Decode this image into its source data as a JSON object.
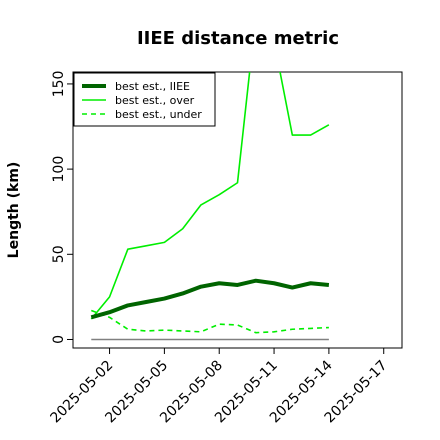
{
  "chart_data": {
    "type": "line",
    "title": "IIEE distance metric",
    "xlabel": "",
    "ylabel": "Length (km)",
    "x_tick_labels": [
      "2025-05-02",
      "2025-05-05",
      "2025-05-08",
      "2025-05-11",
      "2025-05-14",
      "2025-05-17"
    ],
    "y_ticks": [
      0,
      50,
      100,
      150
    ],
    "x": [
      "2025-05-01",
      "2025-05-02",
      "2025-05-03",
      "2025-05-04",
      "2025-05-05",
      "2025-05-06",
      "2025-05-07",
      "2025-05-08",
      "2025-05-09",
      "2025-05-10",
      "2025-05-11",
      "2025-05-12",
      "2025-05-13",
      "2025-05-14"
    ],
    "xlim": [
      "2025-04-30",
      "2025-05-18"
    ],
    "ylim": [
      -5,
      157
    ],
    "zero_line": true,
    "grid": false,
    "legend_position": "top-left",
    "series": [
      {
        "name": "best est., IIEE",
        "color": "#006400",
        "style": "solid",
        "weight": "thick",
        "values": [
          13,
          16,
          20,
          22,
          24,
          27,
          31,
          33,
          32,
          34.5,
          33,
          30.5,
          33,
          32
        ]
      },
      {
        "name": "best est., over",
        "color": "#00ee00",
        "style": "solid",
        "weight": "normal",
        "values": [
          12,
          25,
          53,
          55,
          57,
          65,
          79,
          85,
          92,
          190,
          175,
          120,
          120,
          126
        ]
      },
      {
        "name": "best est., under",
        "color": "#00ee00",
        "style": "dashed",
        "weight": "normal",
        "values": [
          17,
          13,
          6,
          5,
          5.5,
          5,
          4.5,
          9,
          8.5,
          4,
          4.5,
          6,
          6.5,
          7
        ]
      }
    ]
  }
}
